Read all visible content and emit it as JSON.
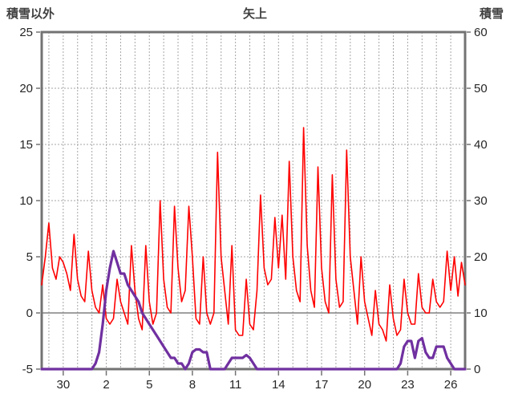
{
  "chart_data": {
    "type": "line",
    "title": "矢上",
    "grid": true,
    "legend_position": "none",
    "colors": {
      "grid": "#A6A6A6",
      "frame": "#737373",
      "zero_line": "#808080",
      "tick_text": "#262626",
      "title_text": "#404040"
    },
    "left_axis": {
      "title": "積雪以外",
      "min": -5,
      "max": 25,
      "ticks": [
        -5,
        0,
        5,
        10,
        15,
        20,
        25
      ]
    },
    "right_axis": {
      "title": "積雪",
      "min": 0,
      "max": 60,
      "ticks": [
        0,
        10,
        20,
        30,
        40,
        50,
        60
      ]
    },
    "x_axis": {
      "min": 0,
      "max": 29.5,
      "minor_start": 0.5,
      "minor_step": 1,
      "tick_positions": [
        1.5,
        4.5,
        7.5,
        10.5,
        13.5,
        16.5,
        19.5,
        22.5,
        25.5,
        28.5
      ],
      "tick_labels": [
        "30",
        "2",
        "5",
        "8",
        "11",
        "14",
        "17",
        "20",
        "23",
        "26"
      ]
    },
    "series": [
      {
        "name": "積雪以外",
        "axis": "left",
        "color": "#FF0000",
        "width": 1.6,
        "t_start": 0,
        "t_step": 0.25,
        "values": [
          2.5,
          5,
          8,
          4,
          3,
          5,
          4.5,
          3.5,
          2,
          7,
          3,
          1.5,
          1,
          5.5,
          2,
          0.5,
          0,
          2.5,
          -0.5,
          -1,
          -0.5,
          3,
          1,
          0,
          -1,
          6,
          2,
          -0.5,
          -1.5,
          6,
          1,
          -1,
          0,
          10,
          3,
          0.5,
          0,
          9.5,
          4,
          1,
          2,
          9.5,
          5,
          -0.5,
          -1,
          5,
          0,
          -1,
          0,
          14.3,
          5,
          2,
          -1,
          6,
          -1.5,
          -2,
          -2,
          3,
          -1,
          -1.5,
          2,
          10.5,
          4,
          2.5,
          3,
          8.5,
          4,
          8.7,
          3,
          13.5,
          5,
          2,
          1,
          16.5,
          6,
          2,
          0.5,
          13,
          4,
          1,
          0,
          12.3,
          3,
          0.5,
          1,
          14.5,
          5,
          2,
          -1,
          5,
          1,
          -0.5,
          -2,
          2,
          -1,
          -1.5,
          -2.5,
          2.5,
          -0.5,
          -2,
          -1.5,
          3,
          0,
          -1,
          -1,
          3.5,
          0.5,
          0,
          0,
          3,
          1,
          0.5,
          1,
          5.5,
          2,
          5,
          1.5,
          4.5,
          2.5
        ]
      },
      {
        "name": "積雪",
        "axis": "right",
        "color": "#7030A0",
        "width": 3.2,
        "t_start": 0,
        "t_step": 0.25,
        "values": [
          0,
          0,
          0,
          0,
          0,
          0,
          0,
          0,
          0,
          0,
          0,
          0,
          0,
          0,
          0,
          1,
          3,
          8,
          14,
          18,
          21,
          19,
          17,
          17,
          15,
          14,
          13,
          12,
          10,
          9,
          8,
          7,
          6,
          5,
          4,
          3,
          2,
          2,
          1,
          1,
          0,
          1,
          3,
          3.5,
          3.5,
          3,
          3,
          0,
          0,
          0,
          0,
          0,
          1,
          2,
          2,
          2,
          2,
          2.5,
          2,
          1,
          0,
          0,
          0,
          0,
          0,
          0,
          0,
          0,
          0,
          0,
          0,
          0,
          0,
          0,
          0,
          0,
          0,
          0,
          0,
          0,
          0,
          0,
          0,
          0,
          0,
          0,
          0,
          0,
          0,
          0,
          0,
          0,
          0,
          0,
          0,
          0,
          0,
          0,
          0,
          0,
          1,
          4,
          5,
          5,
          2,
          5,
          5.5,
          3,
          2,
          2,
          4,
          4,
          4,
          2,
          1,
          0,
          0,
          0,
          0
        ]
      }
    ]
  }
}
